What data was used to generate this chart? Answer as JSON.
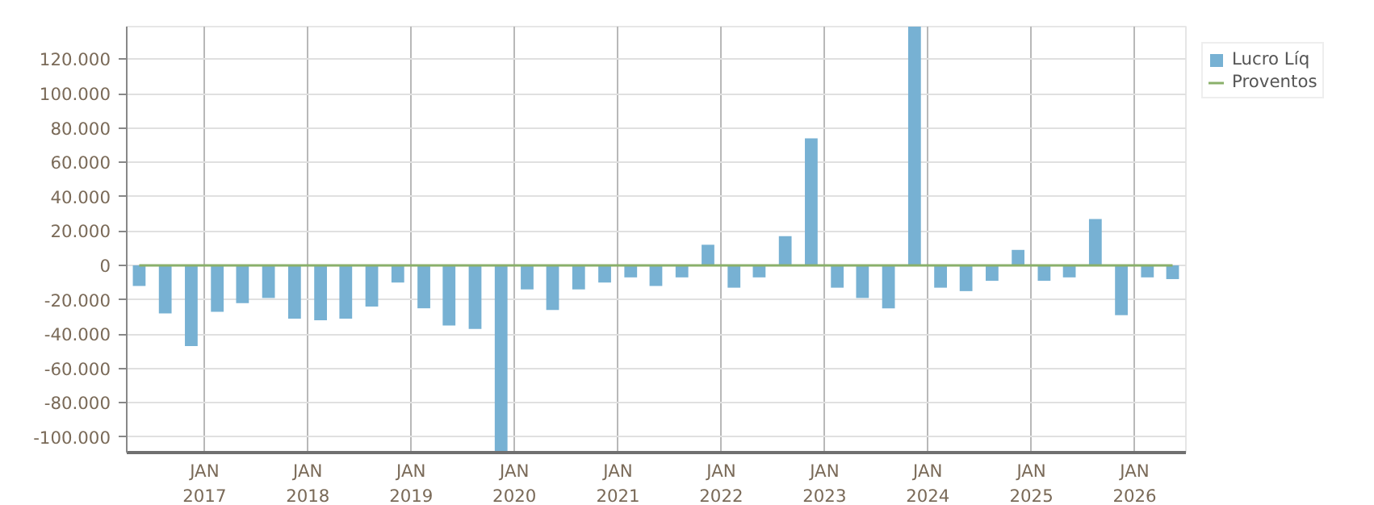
{
  "chart_data": {
    "type": "bar",
    "x": [
      "2016-05-15",
      "2016-08-15",
      "2016-11-15",
      "2017-02-15",
      "2017-05-15",
      "2017-08-15",
      "2017-11-15",
      "2018-02-15",
      "2018-05-15",
      "2018-08-15",
      "2018-11-15",
      "2019-02-15",
      "2019-05-15",
      "2019-08-15",
      "2019-11-15",
      "2020-02-15",
      "2020-05-15",
      "2020-08-15",
      "2020-11-15",
      "2021-02-15",
      "2021-05-15",
      "2021-08-15",
      "2021-11-15",
      "2022-02-15",
      "2022-05-15",
      "2022-08-15",
      "2022-11-15",
      "2023-02-15",
      "2023-05-15",
      "2023-08-15",
      "2023-11-15",
      "2024-02-15",
      "2024-05-15",
      "2024-08-15",
      "2024-11-15",
      "2025-02-15",
      "2025-05-15",
      "2025-08-15",
      "2025-11-15",
      "2026-02-15",
      "2026-05-15"
    ],
    "series": [
      {
        "name": "Lucro Líq",
        "color": "#77b1d3",
        "values": [
          -12000,
          -28000,
          -47000,
          -27000,
          -22000,
          -19000,
          -31000,
          -32000,
          -31000,
          -24000,
          -10000,
          -25000,
          -35000,
          -37000,
          -109000,
          -14000,
          -26000,
          -14000,
          -10000,
          -7000,
          -12000,
          -7000,
          12000,
          -13000,
          -7000,
          17000,
          74000,
          -13000,
          -19000,
          -25000,
          139000,
          -13000,
          -15000,
          -9000,
          9000,
          -9000,
          -7000,
          27000,
          -29000,
          -7000,
          -8000
        ]
      },
      {
        "name": "Proventos",
        "color": "#8ab06a",
        "type": "line",
        "values": [
          0,
          0,
          0,
          0,
          0,
          0,
          0,
          0,
          0,
          0,
          0,
          0,
          0,
          0,
          0,
          0,
          0,
          0,
          0,
          0,
          0,
          0,
          0,
          0,
          0,
          0,
          0,
          0,
          0,
          0,
          0,
          0,
          0,
          0,
          0,
          0,
          0,
          0,
          0,
          0,
          0
        ]
      }
    ],
    "xlim": [
      "2016-04-01",
      "2026-07-01"
    ],
    "xticks": [
      {
        "value": "2017-01-01",
        "label": "JAN\n2017"
      },
      {
        "value": "2018-01-01",
        "label": "JAN\n2018"
      },
      {
        "value": "2019-01-01",
        "label": "JAN\n2019"
      },
      {
        "value": "2020-01-01",
        "label": "JAN\n2020"
      },
      {
        "value": "2021-01-01",
        "label": "JAN\n2021"
      },
      {
        "value": "2022-01-01",
        "label": "JAN\n2022"
      },
      {
        "value": "2023-01-01",
        "label": "JAN\n2023"
      },
      {
        "value": "2024-01-01",
        "label": "JAN\n2024"
      },
      {
        "value": "2025-01-01",
        "label": "JAN\n2025"
      },
      {
        "value": "2026-01-01",
        "label": "JAN\n2026"
      }
    ],
    "ylim": [
      -109000,
      139000
    ],
    "yticks": [
      {
        "value": -100000,
        "label": "-100.000"
      },
      {
        "value": -80000,
        "label": "-80.000"
      },
      {
        "value": -60000,
        "label": "-60.000"
      },
      {
        "value": -40000,
        "label": "-40.000"
      },
      {
        "value": -20000,
        "label": "-20.000"
      },
      {
        "value": 0,
        "label": "0"
      },
      {
        "value": 20000,
        "label": "20.000"
      },
      {
        "value": 40000,
        "label": "40.000"
      },
      {
        "value": 60000,
        "label": "60.000"
      },
      {
        "value": 80000,
        "label": "80.000"
      },
      {
        "value": 100000,
        "label": "100.000"
      },
      {
        "value": 120000,
        "label": "120.000"
      }
    ],
    "grid": true,
    "legend": "top right"
  }
}
